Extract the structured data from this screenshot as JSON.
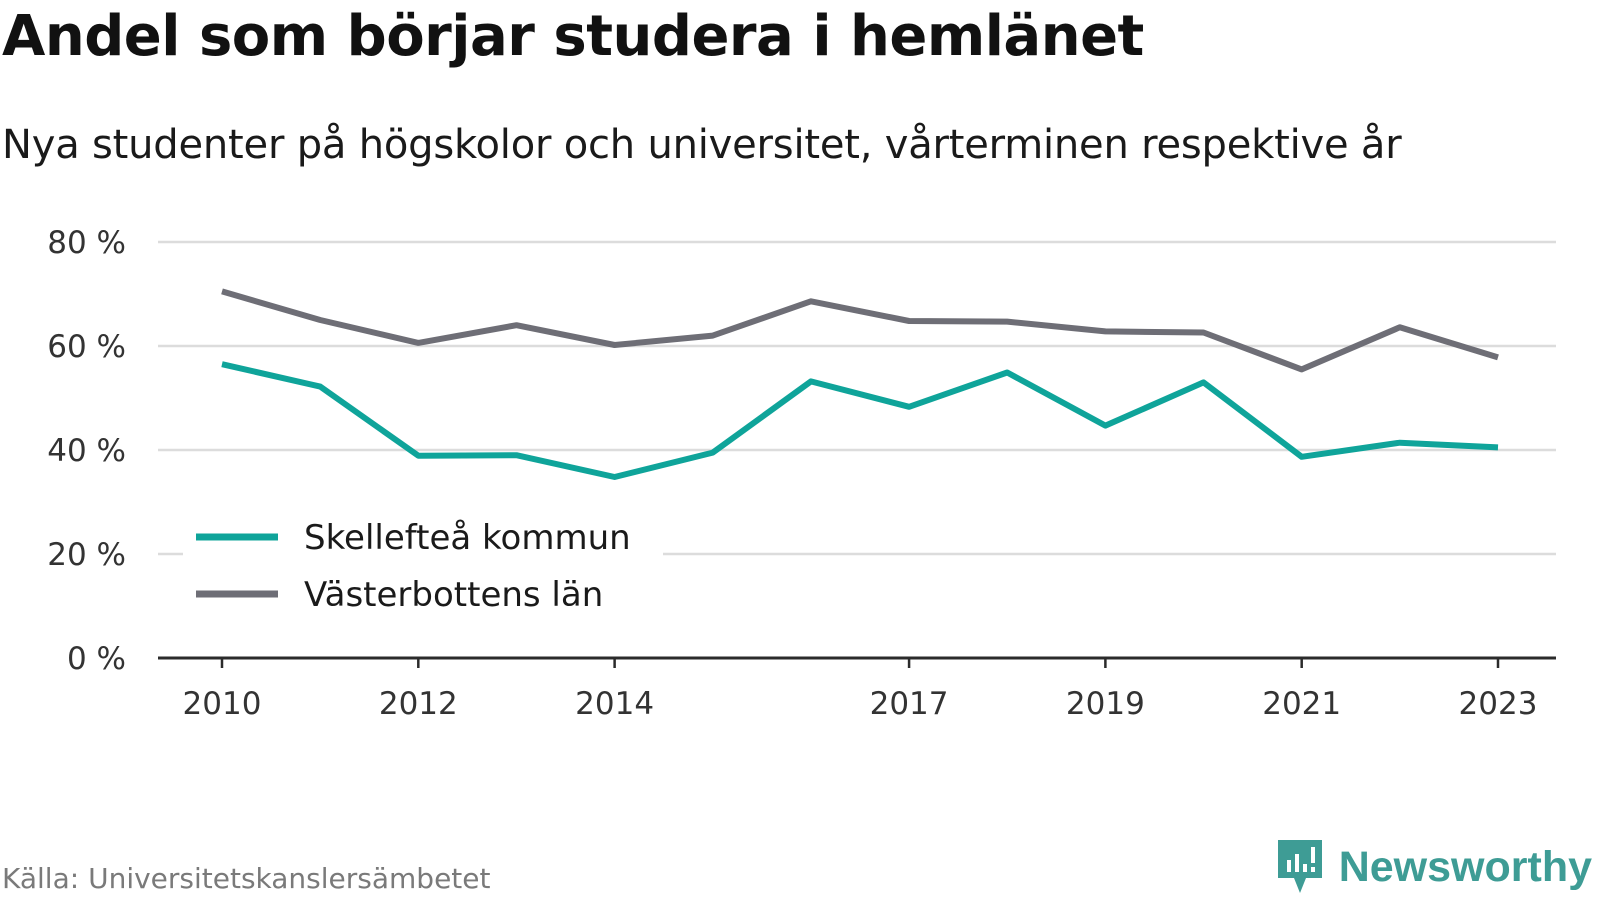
{
  "chart_data": {
    "type": "line",
    "title": "Andel som börjar studera i hemlänet",
    "subtitle": "Nya studenter på högskolor och universitet, vårterminen respektive år",
    "x": [
      2010,
      2011,
      2012,
      2013,
      2014,
      2015,
      2016,
      2017,
      2018,
      2019,
      2020,
      2021,
      2022,
      2023
    ],
    "x_tick_labels": [
      "2010",
      "2012",
      "2014",
      "2017",
      "2019",
      "2021",
      "2023"
    ],
    "x_tick_values": [
      2010,
      2012,
      2014,
      2017,
      2019,
      2021,
      2023
    ],
    "ylim": [
      0,
      80
    ],
    "y_ticks": [
      0,
      20,
      40,
      60,
      80
    ],
    "y_tick_labels": [
      "0 %",
      "20 %",
      "40 %",
      "60 %",
      "80 %"
    ],
    "grid": true,
    "legend_position": "bottom-left",
    "series": [
      {
        "name": "Skellefteå kommun",
        "color": "#0fa49a",
        "values": [
          56.5,
          52.2,
          38.9,
          39.0,
          34.8,
          39.5,
          53.2,
          48.3,
          54.9,
          44.7,
          53.0,
          38.7,
          41.4,
          40.5
        ]
      },
      {
        "name": "Västerbottens län",
        "color": "#6e6e76",
        "values": [
          70.5,
          65.0,
          60.6,
          64.0,
          60.2,
          62.0,
          68.6,
          64.8,
          64.7,
          62.8,
          62.6,
          55.5,
          63.6,
          57.8
        ]
      }
    ]
  },
  "footer": {
    "source": "Källa: Universitetskanslersämbetet",
    "brand": "Newsworthy",
    "brand_color": "#3e9c95",
    "brand_icon": "newsworthy-logo-icon"
  }
}
